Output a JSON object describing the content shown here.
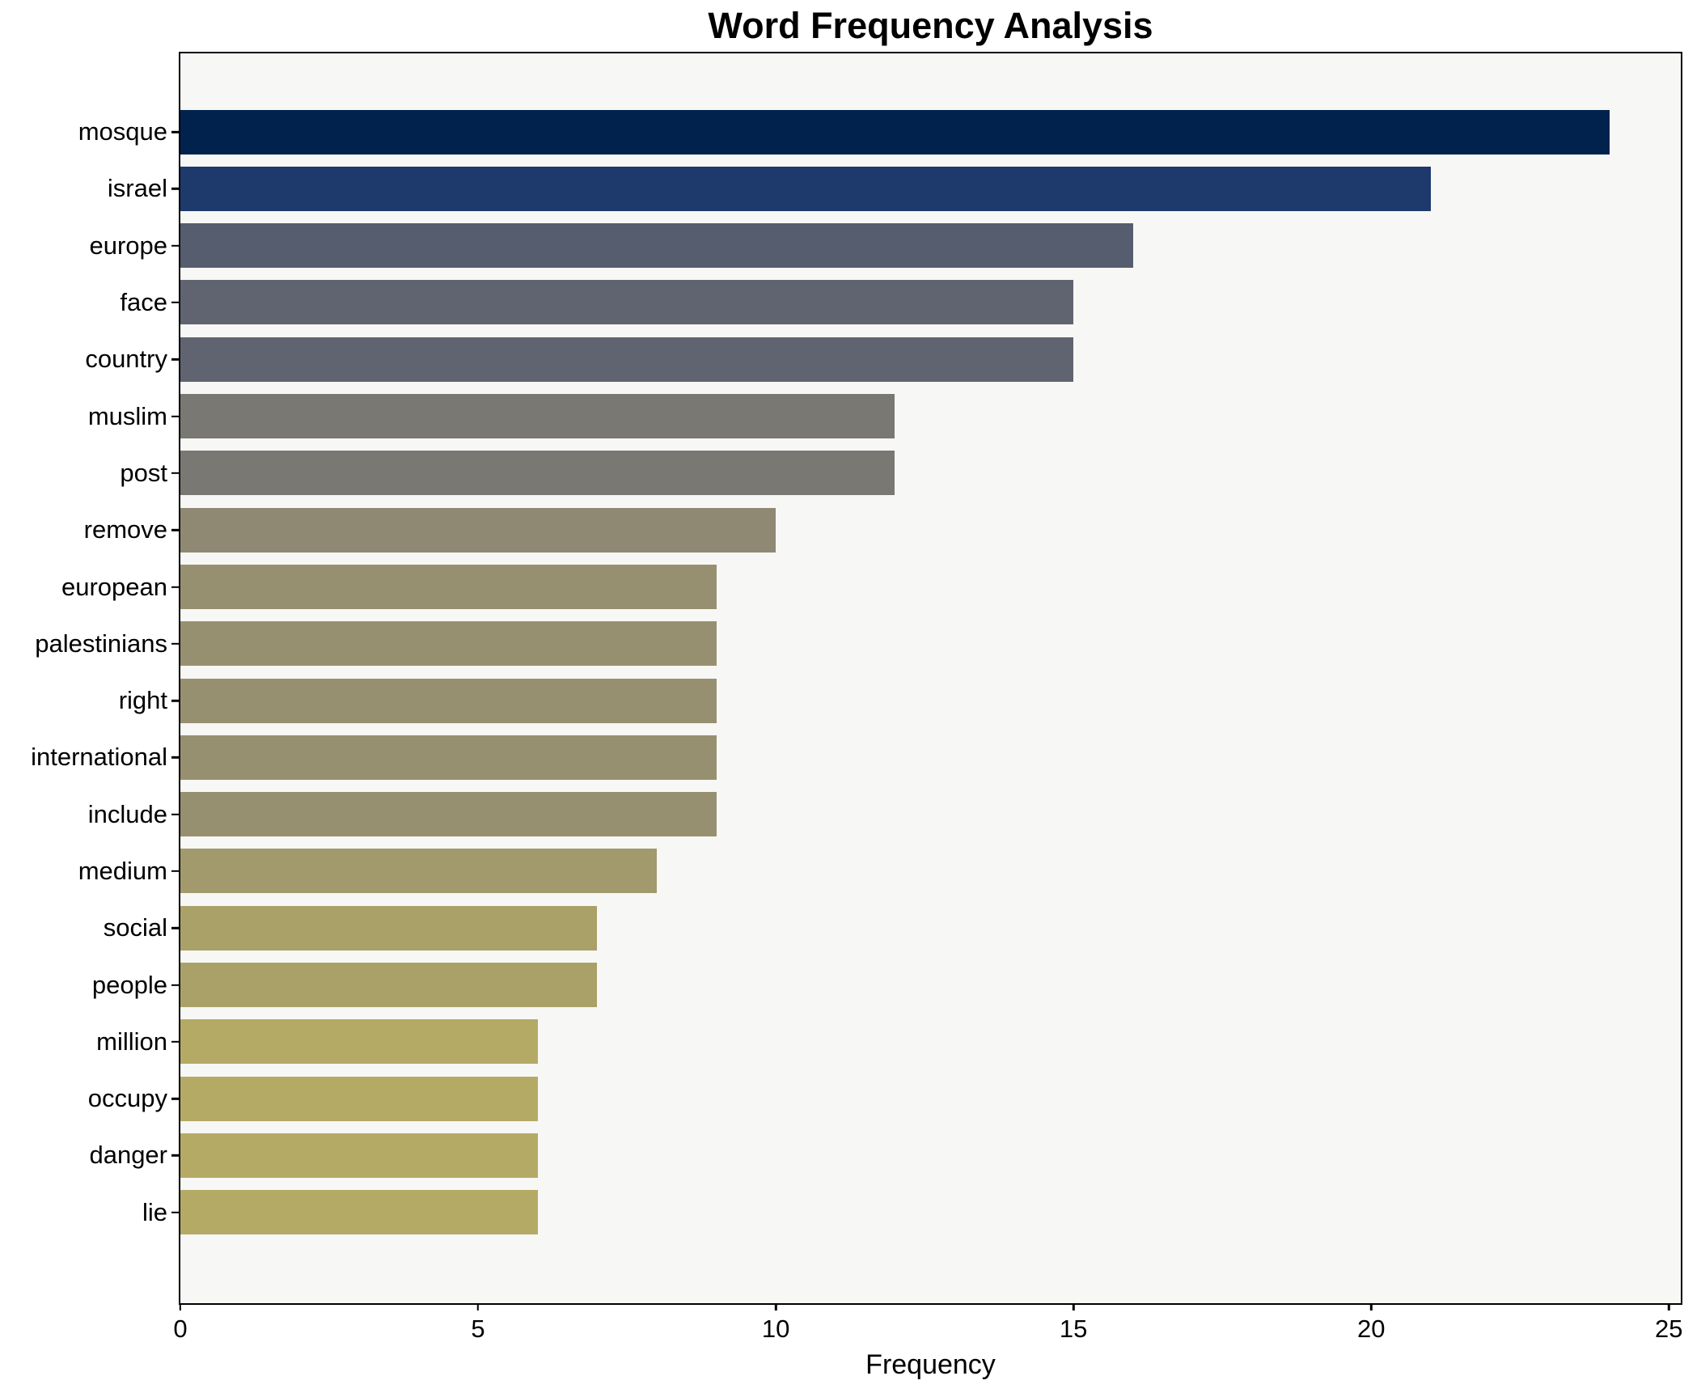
{
  "colors": {
    "page_background": "#ffffff",
    "plot_background": "#f7f7f5",
    "spine": "#000000",
    "text": "#000000"
  },
  "chart_data": {
    "type": "bar",
    "orientation": "horizontal",
    "title": "Word Frequency Analysis",
    "xlabel": "Frequency",
    "ylabel": "",
    "xlim": [
      0,
      25.2
    ],
    "x_ticks": [
      0,
      5,
      10,
      15,
      20,
      25
    ],
    "grid": false,
    "legend": "none",
    "categories": [
      "mosque",
      "israel",
      "europe",
      "face",
      "country",
      "muslim",
      "post",
      "remove",
      "european",
      "palestinians",
      "right",
      "international",
      "include",
      "medium",
      "social",
      "people",
      "million",
      "occupy",
      "danger",
      "lie"
    ],
    "values": [
      24,
      21,
      16,
      15,
      15,
      12,
      12,
      10,
      9,
      9,
      9,
      9,
      9,
      8,
      7,
      7,
      6,
      6,
      6,
      6
    ],
    "bar_colors": [
      "#00224d",
      "#1e3a6c",
      "#565d6e",
      "#5f6470",
      "#5f6470",
      "#797873",
      "#797873",
      "#8f8973",
      "#979070",
      "#979070",
      "#979070",
      "#979070",
      "#979070",
      "#a29a6c",
      "#a9a168",
      "#a9a168",
      "#b4aa66",
      "#b4aa66",
      "#b4aa66",
      "#b4aa66"
    ]
  }
}
